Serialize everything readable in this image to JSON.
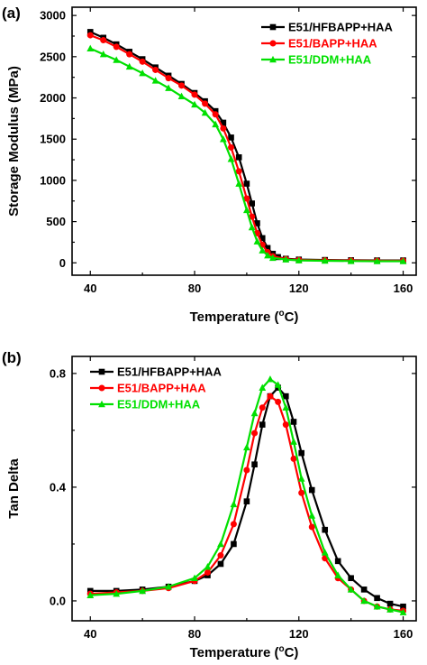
{
  "chart_data": [
    {
      "panel": "(a)",
      "type": "line",
      "xlabel_main": "Temperature (",
      "xlabel_sup": "o",
      "xlabel_tail": "C)",
      "ylabel": "Storage Modulus (MPa)",
      "xlim": [
        33,
        165
      ],
      "ylim": [
        -150,
        3100
      ],
      "xticks": [
        40,
        80,
        120,
        160
      ],
      "yticks": [
        0,
        500,
        1000,
        1500,
        2000,
        2500,
        3000
      ],
      "legend_position": "top-right",
      "series": [
        {
          "name": "E51/HFBAPP+HAA",
          "color": "#000000",
          "marker": "square",
          "x": [
            40,
            45,
            50,
            55,
            60,
            65,
            70,
            75,
            80,
            84,
            88,
            91,
            94,
            97,
            100,
            102,
            104,
            106,
            108,
            110,
            112,
            115,
            120,
            130,
            140,
            150,
            160
          ],
          "y": [
            2800,
            2730,
            2650,
            2560,
            2470,
            2370,
            2270,
            2170,
            2060,
            1960,
            1840,
            1700,
            1520,
            1280,
            960,
            720,
            480,
            300,
            180,
            110,
            70,
            50,
            40,
            35,
            32,
            30,
            30
          ]
        },
        {
          "name": "E51/BAPP+HAA",
          "color": "#ff0000",
          "marker": "circle",
          "x": [
            40,
            45,
            50,
            55,
            60,
            65,
            70,
            75,
            80,
            84,
            88,
            91,
            94,
            97,
            100,
            102,
            104,
            106,
            108,
            110,
            115,
            120,
            130,
            140,
            150,
            160
          ],
          "y": [
            2760,
            2700,
            2620,
            2530,
            2440,
            2340,
            2240,
            2150,
            2040,
            1930,
            1800,
            1630,
            1400,
            1110,
            780,
            560,
            360,
            220,
            130,
            80,
            45,
            35,
            30,
            28,
            25,
            25
          ]
        },
        {
          "name": "E51/DDM+HAA",
          "color": "#00e000",
          "marker": "triangle",
          "x": [
            40,
            45,
            50,
            55,
            60,
            65,
            70,
            75,
            80,
            84,
            88,
            91,
            94,
            97,
            100,
            102,
            104,
            106,
            108,
            110,
            115,
            120,
            130,
            140,
            150,
            160
          ],
          "y": [
            2600,
            2530,
            2460,
            2380,
            2300,
            2210,
            2120,
            2020,
            1920,
            1820,
            1680,
            1500,
            1260,
            960,
            640,
            430,
            260,
            150,
            90,
            60,
            40,
            30,
            25,
            22,
            20,
            20
          ]
        }
      ]
    },
    {
      "panel": "(b)",
      "type": "line",
      "xlabel_main": "Temperature (",
      "xlabel_sup": "o",
      "xlabel_tail": "C)",
      "ylabel": "Tan Delta",
      "xlim": [
        33,
        165
      ],
      "ylim": [
        -0.07,
        0.86
      ],
      "xticks": [
        40,
        80,
        120,
        160
      ],
      "yticks": [
        0.0,
        0.4,
        0.8
      ],
      "ytick_labels": [
        "0.0",
        "0.4",
        "0.8"
      ],
      "legend_position": "top-left",
      "series": [
        {
          "name": "E51/HFBAPP+HAA",
          "color": "#000000",
          "marker": "square",
          "x": [
            40,
            50,
            60,
            70,
            80,
            85,
            90,
            95,
            100,
            103,
            106,
            109,
            112,
            115,
            118,
            121,
            125,
            130,
            135,
            140,
            145,
            150,
            155,
            160
          ],
          "y": [
            0.035,
            0.035,
            0.04,
            0.05,
            0.07,
            0.09,
            0.13,
            0.2,
            0.35,
            0.48,
            0.62,
            0.72,
            0.75,
            0.72,
            0.63,
            0.52,
            0.39,
            0.25,
            0.14,
            0.08,
            0.04,
            0.01,
            -0.01,
            -0.02
          ]
        },
        {
          "name": "E51/BAPP+HAA",
          "color": "#ff0000",
          "marker": "circle",
          "x": [
            40,
            50,
            60,
            70,
            80,
            85,
            90,
            95,
            100,
            103,
            106,
            109,
            112,
            115,
            118,
            121,
            125,
            130,
            135,
            140,
            145,
            150,
            155,
            160
          ],
          "y": [
            0.025,
            0.03,
            0.035,
            0.045,
            0.07,
            0.1,
            0.16,
            0.27,
            0.46,
            0.59,
            0.68,
            0.72,
            0.7,
            0.62,
            0.5,
            0.38,
            0.26,
            0.15,
            0.08,
            0.04,
            0.0,
            -0.02,
            -0.03,
            -0.035
          ]
        },
        {
          "name": "E51/DDM+HAA",
          "color": "#00e000",
          "marker": "triangle",
          "x": [
            40,
            50,
            60,
            70,
            80,
            85,
            90,
            95,
            100,
            103,
            106,
            109,
            112,
            115,
            118,
            121,
            125,
            130,
            135,
            140,
            145,
            150,
            155,
            160
          ],
          "y": [
            0.02,
            0.025,
            0.035,
            0.05,
            0.08,
            0.12,
            0.2,
            0.34,
            0.54,
            0.66,
            0.75,
            0.78,
            0.76,
            0.68,
            0.56,
            0.43,
            0.3,
            0.17,
            0.09,
            0.04,
            0.0,
            -0.02,
            -0.03,
            -0.04
          ]
        }
      ]
    }
  ]
}
